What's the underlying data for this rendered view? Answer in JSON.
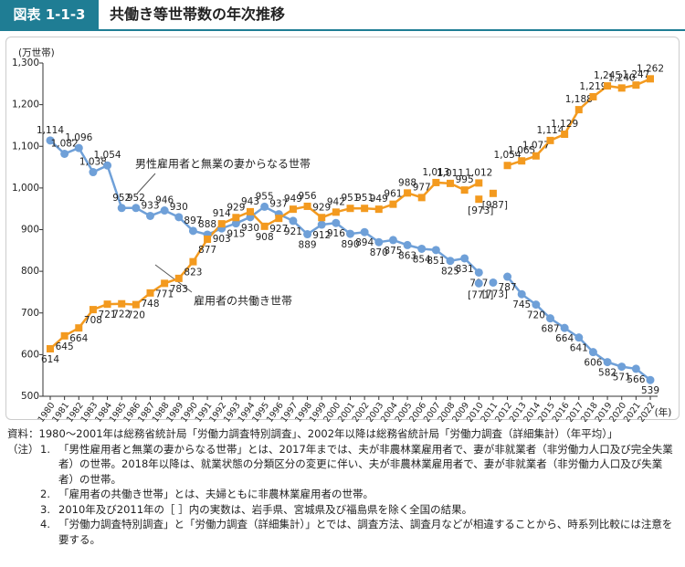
{
  "header": {
    "figure_no": "図表 1-1-3",
    "title": "共働き等世帯数の年次推移"
  },
  "chart_data": {
    "type": "line",
    "y_label": "(万世帯)",
    "x_label": "(年)",
    "categories": [
      "1980",
      "1981",
      "1982",
      "1983",
      "1984",
      "1985",
      "1986",
      "1987",
      "1988",
      "1989",
      "1990",
      "1991",
      "1992",
      "1993",
      "1994",
      "1995",
      "1996",
      "1997",
      "1998",
      "1999",
      "2000",
      "2001",
      "2002",
      "2003",
      "2004",
      "2005",
      "2006",
      "2007",
      "2008",
      "2009",
      "2010",
      "2011",
      "2012",
      "2013",
      "2014",
      "2015",
      "2016",
      "2017",
      "2018",
      "2019",
      "2020",
      "2021",
      "2022"
    ],
    "ylim": [
      500,
      1300
    ],
    "yticks": [
      500,
      600,
      700,
      800,
      900,
      {
        "value": 1000,
        "label": "1,000"
      },
      {
        "value": 1100,
        "label": "1,100"
      },
      {
        "value": 1200,
        "label": "1,200"
      },
      {
        "value": 1300,
        "label": "1,300"
      }
    ],
    "grid": false,
    "series": [
      {
        "name": "男性雇用者と無業の妻からなる世帯",
        "color": "#6fa0d8",
        "marker": "circle",
        "values": [
          1114,
          1082,
          1096,
          1038,
          1054,
          952,
          952,
          933,
          946,
          930,
          897,
          888,
          903,
          915,
          930,
          955,
          937,
          921,
          889,
          912,
          916,
          890,
          894,
          870,
          875,
          863,
          854,
          851,
          825,
          831,
          797,
          null,
          787,
          745,
          720,
          687,
          664,
          641,
          606,
          582,
          571,
          566,
          539
        ],
        "value_labels": [
          "1,114",
          "1,082",
          "1,096",
          "1,038",
          "1,054",
          "952",
          "952",
          "933",
          "946",
          "930",
          "897",
          "888",
          "903",
          "915",
          "930",
          "955",
          "937",
          "921",
          "889",
          "912",
          "916",
          "890",
          "894",
          "870",
          "875",
          "863",
          "854",
          "851",
          "825",
          "831",
          "797",
          null,
          "787",
          "745",
          "720",
          "687",
          "664",
          "641",
          "606",
          "582",
          "571",
          "566",
          "539"
        ]
      },
      {
        "name": "雇用者の共働き世帯",
        "color": "#f39a1f",
        "marker": "square",
        "values": [
          614,
          645,
          664,
          708,
          721,
          722,
          720,
          748,
          771,
          783,
          823,
          877,
          914,
          929,
          943,
          908,
          927,
          949,
          956,
          929,
          942,
          951,
          951,
          949,
          961,
          988,
          977,
          1013,
          1011,
          995,
          1012,
          null,
          1054,
          1065,
          1077,
          1114,
          1129,
          1188,
          1219,
          1245,
          1240,
          1247,
          1262
        ],
        "value_labels": [
          "614",
          "645",
          "664",
          "708",
          "721",
          "722",
          "720",
          "748",
          "771",
          "783",
          "823",
          "877",
          "914",
          "929",
          "943",
          "908",
          "927",
          "949",
          "956",
          "929",
          "942",
          "951",
          "951",
          "949",
          "961",
          "988",
          "977",
          "1,013",
          "1,011",
          "995",
          "1,012",
          null,
          "1,054",
          "1,065",
          "1,077",
          "1,114",
          "1,129",
          "1,188",
          "1,219",
          "1,245",
          "1,240",
          "1,247",
          "1,262"
        ]
      }
    ],
    "bracket_series": [
      {
        "color": "#6fa0d8",
        "marker": "circle",
        "values": [
          null,
          null,
          null,
          null,
          null,
          null,
          null,
          null,
          null,
          null,
          null,
          null,
          null,
          null,
          null,
          null,
          null,
          null,
          null,
          null,
          null,
          null,
          null,
          null,
          null,
          null,
          null,
          null,
          null,
          null,
          771,
          773,
          null,
          null,
          null,
          null,
          null,
          null,
          null,
          null,
          null,
          null,
          null
        ],
        "value_labels": [
          null,
          null,
          null,
          null,
          null,
          null,
          null,
          null,
          null,
          null,
          null,
          null,
          null,
          null,
          null,
          null,
          null,
          null,
          null,
          null,
          null,
          null,
          null,
          null,
          null,
          null,
          null,
          null,
          null,
          null,
          "[771]",
          "[773]",
          null,
          null,
          null,
          null,
          null,
          null,
          null,
          null,
          null,
          null,
          null
        ]
      },
      {
        "color": "#f39a1f",
        "marker": "square",
        "values": [
          null,
          null,
          null,
          null,
          null,
          null,
          null,
          null,
          null,
          null,
          null,
          null,
          null,
          null,
          null,
          null,
          null,
          null,
          null,
          null,
          null,
          null,
          null,
          null,
          null,
          null,
          null,
          null,
          null,
          null,
          973,
          987,
          null,
          null,
          null,
          null,
          null,
          null,
          null,
          null,
          null,
          null,
          null
        ],
        "value_labels": [
          null,
          null,
          null,
          null,
          null,
          null,
          null,
          null,
          null,
          null,
          null,
          null,
          null,
          null,
          null,
          null,
          null,
          null,
          null,
          null,
          null,
          null,
          null,
          null,
          null,
          null,
          null,
          null,
          null,
          null,
          "[973]",
          "[987]",
          null,
          null,
          null,
          null,
          null,
          null,
          null,
          null,
          null,
          null,
          null
        ]
      }
    ]
  },
  "notes": {
    "source": "資料：1980～2001年は総務省統計局「労働力調査特別調査」、2002年以降は総務省統計局「労働力調査（詳細集計）（年平均）」",
    "note_label": "（注）",
    "items": [
      {
        "no": "1.",
        "text": "「男性雇用者と無業の妻からなる世帯」とは、2017年までは、夫が非農林業雇用者で、妻が非就業者（非労働力人口及び完全失業者）の世帯。2018年以降は、就業状態の分類区分の変更に伴い、夫が非農林業雇用者で、妻が非就業者（非労働力人口及び失業者）の世帯。"
      },
      {
        "no": "2.",
        "text": "「雇用者の共働き世帯」とは、夫婦ともに非農林業雇用者の世帯。"
      },
      {
        "no": "3.",
        "text": "2010年及び2011年の［ ］内の実数は、岩手県、宮城県及び福島県を除く全国の結果。"
      },
      {
        "no": "4.",
        "text": "「労働力調査特別調査」と「労働力調査（詳細集計）」とでは、調査方法、調査月などが相違することから、時系列比較には注意を要する。"
      }
    ]
  }
}
